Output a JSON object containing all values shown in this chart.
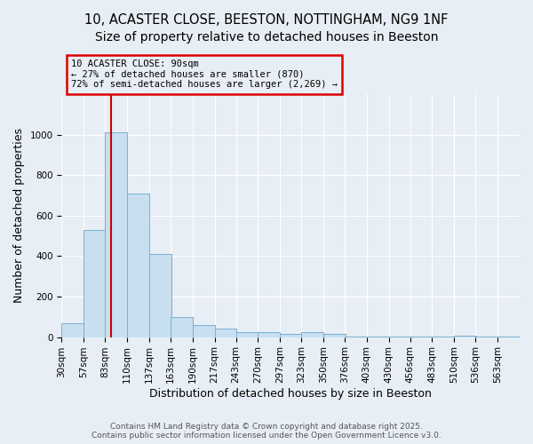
{
  "title_line1": "10, ACASTER CLOSE, BEESTON, NOTTINGHAM, NG9 1NF",
  "title_line2": "Size of property relative to detached houses in Beeston",
  "xlabel": "Distribution of detached houses by size in Beeston",
  "ylabel": "Number of detached properties",
  "bins": [
    30,
    57,
    83,
    110,
    137,
    163,
    190,
    217,
    243,
    270,
    297,
    323,
    350,
    376,
    403,
    430,
    456,
    483,
    510,
    536,
    563
  ],
  "bar_heights": [
    70,
    530,
    1010,
    710,
    410,
    100,
    60,
    40,
    25,
    25,
    15,
    25,
    15,
    3,
    3,
    3,
    3,
    2,
    8,
    2,
    1
  ],
  "bar_color": "#c8dff0",
  "bar_edgecolor": "#7ab0d4",
  "property_size": 90,
  "annotation_text": "10 ACASTER CLOSE: 90sqm\n← 27% of detached houses are smaller (870)\n72% of semi-detached houses are larger (2,269) →",
  "annotation_box_color": "#dd0000",
  "vline_color": "#cc0000",
  "ylim_max": 1200,
  "yticks": [
    0,
    200,
    400,
    600,
    800,
    1000
  ],
  "footnote1": "Contains HM Land Registry data © Crown copyright and database right 2025.",
  "footnote2": "Contains public sector information licensed under the Open Government Licence v3.0.",
  "bg_color": "#e8eef5",
  "grid_color": "#ffffff",
  "title_fontsize": 10.5,
  "tick_fontsize": 7.5,
  "label_fontsize": 9,
  "footnote_fontsize": 6.5
}
